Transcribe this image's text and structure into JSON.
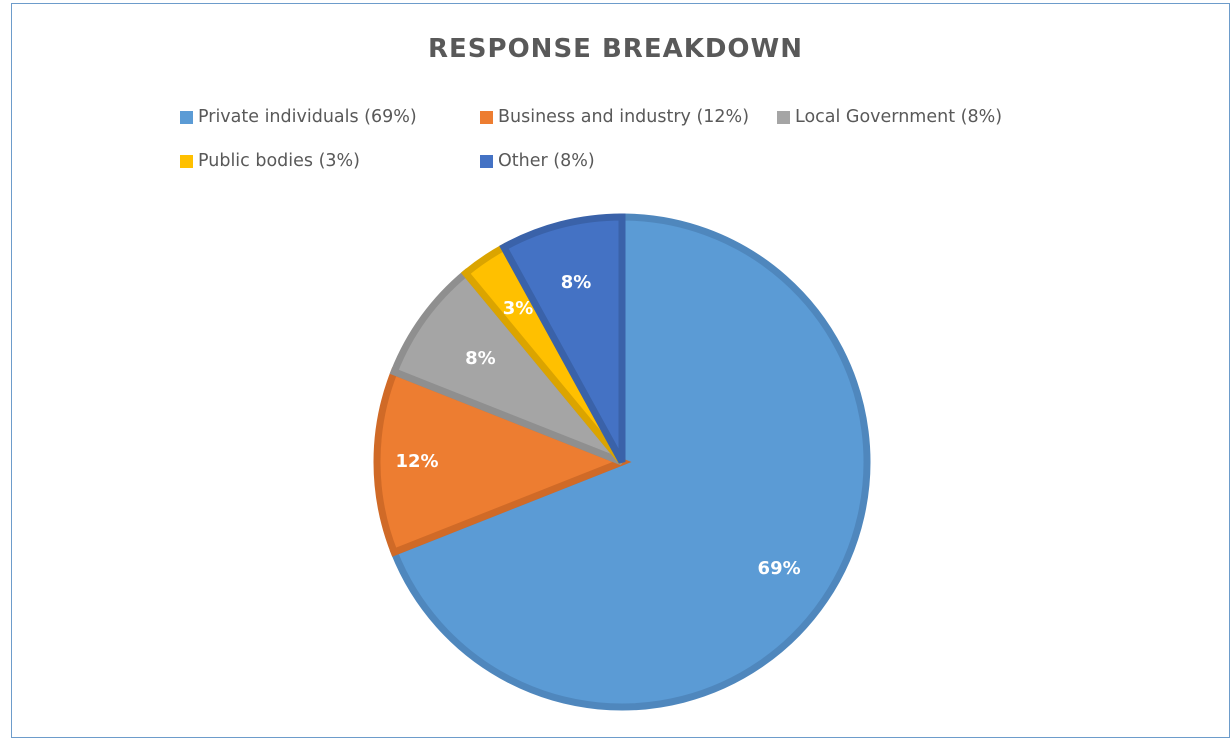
{
  "chart_data": {
    "type": "pie",
    "title": "RESPONSE BREAKDOWN",
    "legend_position": "top",
    "slices": [
      {
        "name": "Private individuals (69%)",
        "value": 69,
        "label": "69%",
        "color": "#5b9bd5",
        "edge": "#4f87bd"
      },
      {
        "name": "Business and industry (12%)",
        "value": 12,
        "label": "12%",
        "color": "#ed7d31",
        "edge": "#d06a27"
      },
      {
        "name": "Local Government (8%)",
        "value": 8,
        "label": "8%",
        "color": "#a5a5a5",
        "edge": "#8f8f8f"
      },
      {
        "name": "Public bodies (3%)",
        "value": 3,
        "label": "3%",
        "color": "#ffc000",
        "edge": "#dba400"
      },
      {
        "name": "Other (8%)",
        "value": 8,
        "label": "8%",
        "color": "#4472c4",
        "edge": "#3a62a9"
      }
    ]
  },
  "colors": {
    "frame_border": "#6d9ccb",
    "title_text": "#595959",
    "legend_text": "#595959"
  }
}
